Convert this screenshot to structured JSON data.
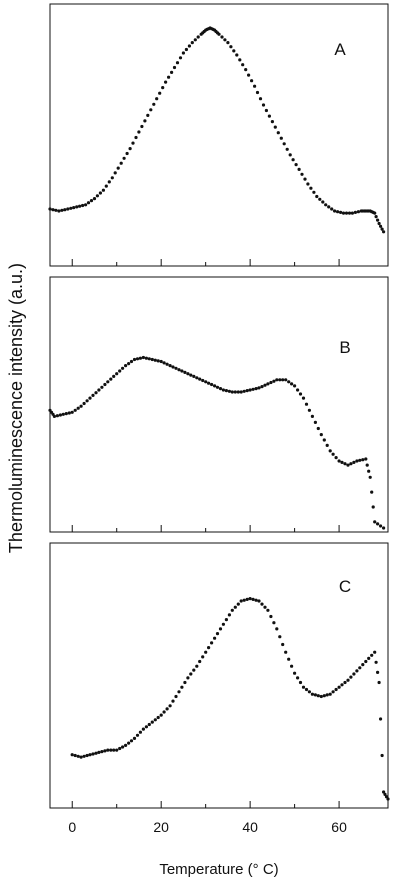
{
  "chart_data": {
    "type": "scatter",
    "x_axis": {
      "label": "Temperature (° C)",
      "ticks": [
        0,
        20,
        40,
        60
      ],
      "minor_ticks": [
        10,
        30,
        50
      ],
      "range": [
        -5,
        71
      ]
    },
    "y_axis": {
      "label": "Thermoluminescence intensity (a.u.)",
      "units": "a.u.",
      "range": [
        0,
        100
      ]
    },
    "grid": false,
    "panels": [
      {
        "label": "A",
        "points": [
          [
            -5,
            13
          ],
          [
            -3,
            12
          ],
          [
            -1,
            13
          ],
          [
            1,
            14
          ],
          [
            3,
            15
          ],
          [
            5,
            18
          ],
          [
            7,
            22
          ],
          [
            9,
            28
          ],
          [
            11,
            35
          ],
          [
            13,
            42
          ],
          [
            15,
            50
          ],
          [
            17,
            58
          ],
          [
            19,
            66
          ],
          [
            21,
            74
          ],
          [
            23,
            81
          ],
          [
            25,
            88
          ],
          [
            27,
            93
          ],
          [
            29,
            97
          ],
          [
            30,
            99
          ],
          [
            31,
            100
          ],
          [
            32,
            99
          ],
          [
            33,
            97
          ],
          [
            35,
            93
          ],
          [
            37,
            87
          ],
          [
            39,
            80
          ],
          [
            41,
            72
          ],
          [
            43,
            63
          ],
          [
            45,
            55
          ],
          [
            47,
            47
          ],
          [
            49,
            39
          ],
          [
            51,
            32
          ],
          [
            53,
            25
          ],
          [
            55,
            19
          ],
          [
            57,
            15
          ],
          [
            59,
            12
          ],
          [
            61,
            11
          ],
          [
            63,
            11
          ],
          [
            65,
            12
          ],
          [
            66,
            12
          ],
          [
            67,
            12
          ],
          [
            68,
            11
          ],
          [
            69,
            6
          ],
          [
            70,
            2
          ]
        ]
      },
      {
        "label": "B",
        "points": [
          [
            -5,
            58
          ],
          [
            -4,
            55
          ],
          [
            -2,
            56
          ],
          [
            0,
            57
          ],
          [
            2,
            60
          ],
          [
            4,
            64
          ],
          [
            6,
            68
          ],
          [
            8,
            72
          ],
          [
            10,
            76
          ],
          [
            12,
            80
          ],
          [
            14,
            83
          ],
          [
            16,
            84
          ],
          [
            18,
            83
          ],
          [
            20,
            82
          ],
          [
            22,
            80
          ],
          [
            24,
            78
          ],
          [
            26,
            76
          ],
          [
            28,
            74
          ],
          [
            30,
            72
          ],
          [
            32,
            70
          ],
          [
            34,
            68
          ],
          [
            36,
            67
          ],
          [
            38,
            67
          ],
          [
            40,
            68
          ],
          [
            42,
            69
          ],
          [
            44,
            71
          ],
          [
            46,
            73
          ],
          [
            48,
            73
          ],
          [
            50,
            70
          ],
          [
            52,
            64
          ],
          [
            54,
            55
          ],
          [
            56,
            46
          ],
          [
            58,
            38
          ],
          [
            60,
            33
          ],
          [
            62,
            31
          ],
          [
            64,
            33
          ],
          [
            66,
            34
          ],
          [
            67,
            25
          ],
          [
            68,
            3
          ],
          [
            70,
            0
          ]
        ]
      },
      {
        "label": "C",
        "points": [
          [
            0,
            22
          ],
          [
            2,
            21
          ],
          [
            4,
            22
          ],
          [
            6,
            23
          ],
          [
            8,
            24
          ],
          [
            10,
            24
          ],
          [
            12,
            26
          ],
          [
            14,
            29
          ],
          [
            16,
            33
          ],
          [
            18,
            36
          ],
          [
            20,
            39
          ],
          [
            22,
            43
          ],
          [
            24,
            49
          ],
          [
            26,
            55
          ],
          [
            28,
            60
          ],
          [
            30,
            66
          ],
          [
            32,
            72
          ],
          [
            34,
            78
          ],
          [
            36,
            84
          ],
          [
            38,
            88
          ],
          [
            40,
            89
          ],
          [
            42,
            88
          ],
          [
            44,
            84
          ],
          [
            46,
            76
          ],
          [
            48,
            66
          ],
          [
            50,
            57
          ],
          [
            52,
            51
          ],
          [
            54,
            48
          ],
          [
            56,
            47
          ],
          [
            58,
            48
          ],
          [
            60,
            51
          ],
          [
            62,
            54
          ],
          [
            64,
            58
          ],
          [
            66,
            62
          ],
          [
            68,
            66
          ],
          [
            69,
            53
          ],
          [
            70,
            6
          ],
          [
            71,
            3
          ]
        ]
      }
    ]
  }
}
